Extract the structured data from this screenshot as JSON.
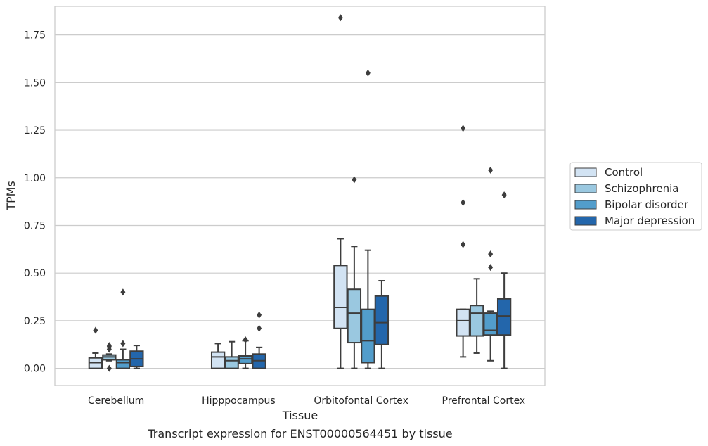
{
  "chart_data": {
    "type": "box",
    "caption": "Transcript expression for ENST00000564451 by tissue",
    "xlabel": "Tissue",
    "ylabel": "TPMs",
    "ylim": [
      -0.09,
      1.9
    ],
    "yticks": [
      "0.00",
      "0.25",
      "0.50",
      "0.75",
      "1.00",
      "1.25",
      "1.50",
      "1.75"
    ],
    "grid": "horizontal",
    "legend_position": "right",
    "categories": [
      "Cerebellum",
      "Hipppocampus",
      "Orbitofontal Cortex",
      "Prefrontal Cortex"
    ],
    "series": [
      {
        "name": "Control",
        "color": "#d2e3f3",
        "boxes": [
          {
            "whislo": 0.0,
            "q1": 0.0,
            "med": 0.03,
            "q3": 0.055,
            "whishi": 0.08,
            "fliers": [
              0.2
            ]
          },
          {
            "whislo": 0.0,
            "q1": 0.0,
            "med": 0.06,
            "q3": 0.085,
            "whishi": 0.13,
            "fliers": []
          },
          {
            "whislo": 0.0,
            "q1": 0.21,
            "med": 0.32,
            "q3": 0.54,
            "whishi": 0.68,
            "fliers": [
              1.84
            ]
          },
          {
            "whislo": 0.06,
            "q1": 0.17,
            "med": 0.25,
            "q3": 0.31,
            "whishi": 0.31,
            "fliers": [
              0.65,
              0.87,
              1.26
            ]
          }
        ]
      },
      {
        "name": "Schizophrenia",
        "color": "#9ac8e0",
        "boxes": [
          {
            "whislo": 0.04,
            "q1": 0.045,
            "med": 0.06,
            "q3": 0.07,
            "whishi": 0.075,
            "fliers": [
              0.0,
              0.1,
              0.115,
              0.12
            ]
          },
          {
            "whislo": 0.0,
            "q1": 0.0,
            "med": 0.04,
            "q3": 0.06,
            "whishi": 0.14,
            "fliers": []
          },
          {
            "whislo": 0.0,
            "q1": 0.135,
            "med": 0.29,
            "q3": 0.415,
            "whishi": 0.64,
            "fliers": [
              0.99
            ]
          },
          {
            "whislo": 0.08,
            "q1": 0.17,
            "med": 0.29,
            "q3": 0.33,
            "whishi": 0.47,
            "fliers": []
          }
        ]
      },
      {
        "name": "Bipolar disorder",
        "color": "#529dcb",
        "boxes": [
          {
            "whislo": 0.0,
            "q1": 0.0,
            "med": 0.03,
            "q3": 0.045,
            "whishi": 0.1,
            "fliers": [
              0.13,
              0.4
            ]
          },
          {
            "whislo": 0.0,
            "q1": 0.025,
            "med": 0.05,
            "q3": 0.065,
            "whishi": 0.145,
            "fliers": [
              0.15
            ]
          },
          {
            "whislo": 0.0,
            "q1": 0.03,
            "med": 0.145,
            "q3": 0.31,
            "whishi": 0.62,
            "fliers": [
              1.55
            ]
          },
          {
            "whislo": 0.04,
            "q1": 0.175,
            "med": 0.2,
            "q3": 0.29,
            "whishi": 0.3,
            "fliers": [
              0.53,
              0.6,
              1.04
            ]
          }
        ]
      },
      {
        "name": "Major depression",
        "color": "#2366ab",
        "boxes": [
          {
            "whislo": 0.0,
            "q1": 0.01,
            "med": 0.05,
            "q3": 0.09,
            "whishi": 0.12,
            "fliers": []
          },
          {
            "whislo": 0.0,
            "q1": 0.0,
            "med": 0.04,
            "q3": 0.075,
            "whishi": 0.11,
            "fliers": [
              0.21,
              0.28
            ]
          },
          {
            "whislo": 0.0,
            "q1": 0.125,
            "med": 0.24,
            "q3": 0.38,
            "whishi": 0.46,
            "fliers": []
          },
          {
            "whislo": 0.0,
            "q1": 0.175,
            "med": 0.275,
            "q3": 0.365,
            "whishi": 0.5,
            "fliers": [
              0.91
            ]
          }
        ]
      }
    ]
  }
}
